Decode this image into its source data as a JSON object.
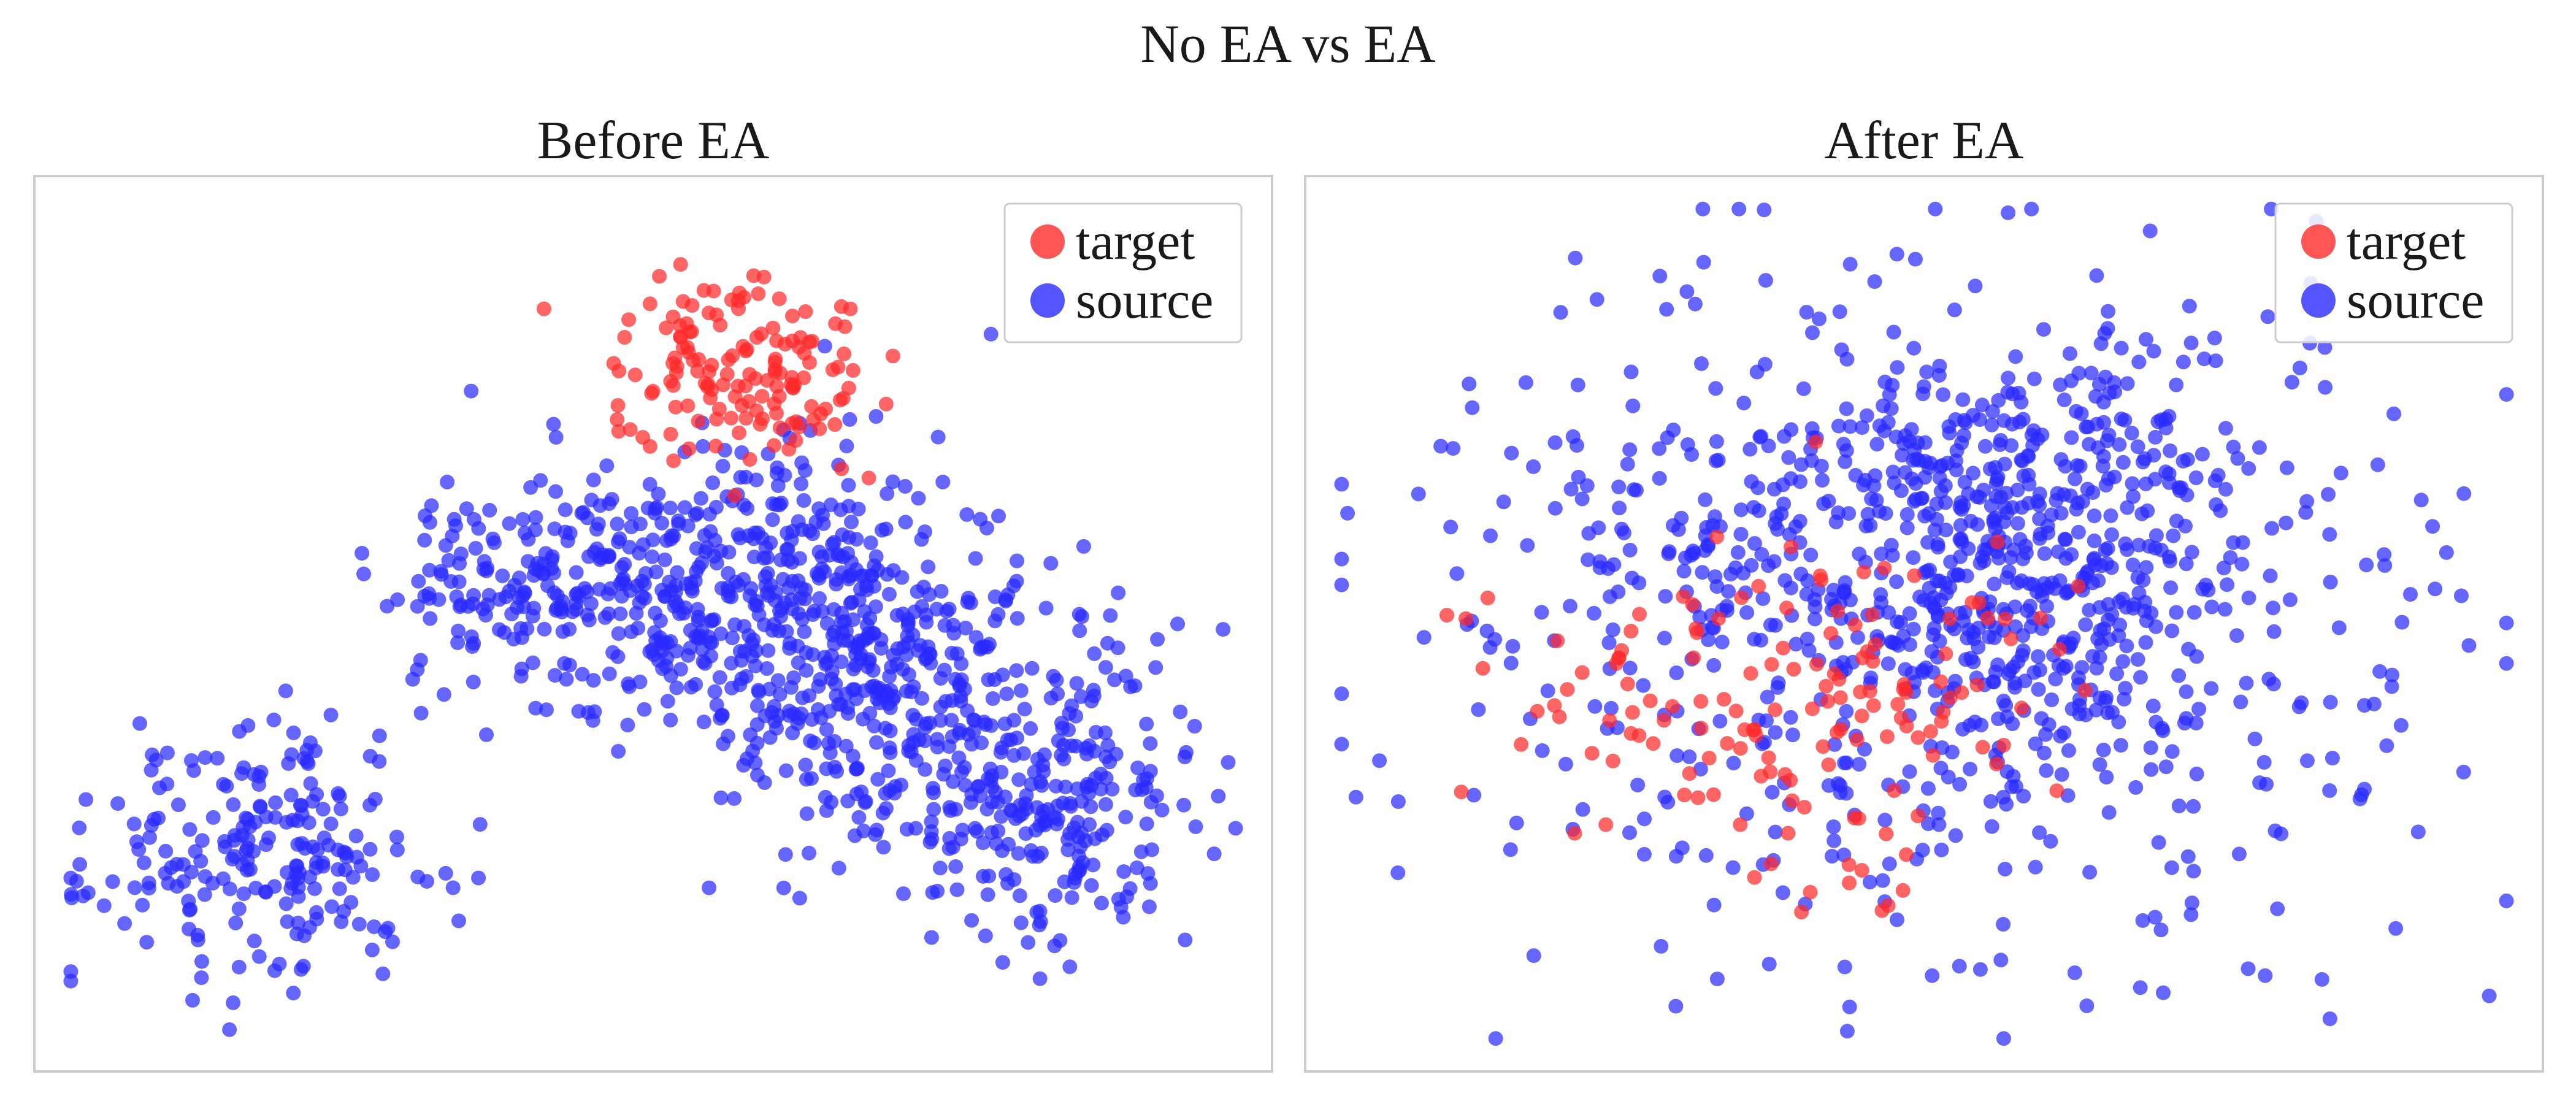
{
  "figure": {
    "title": "No EA vs EA"
  },
  "colors": {
    "target": "#ff2a2a",
    "source": "#2a2aff",
    "frame": "#cccccc",
    "legend_border": "#cccccc"
  },
  "chart_data": [
    {
      "type": "scatter",
      "title": "Before EA",
      "xlabel": "",
      "ylabel": "",
      "xlim": [
        0,
        100
      ],
      "ylim": [
        0,
        100
      ],
      "grid": false,
      "ticks": false,
      "legend": {
        "placement": "top-right",
        "entries": [
          "target",
          "source"
        ]
      },
      "series": [
        {
          "name": "target",
          "color": "#ff2a2a",
          "clusters": [
            {
              "cx": 58,
              "cy": 80,
              "sx": 5.5,
              "sy": 5.5,
              "n": 150
            }
          ]
        },
        {
          "name": "source",
          "color": "#2a2aff",
          "clusters": [
            {
              "cx": 16,
              "cy": 22,
              "sx": 7,
              "sy": 7,
              "n": 220
            },
            {
              "cx": 40,
              "cy": 55,
              "sx": 6.5,
              "sy": 6,
              "n": 190
            },
            {
              "cx": 60,
              "cy": 55,
              "sx": 8,
              "sy": 9,
              "n": 360
            },
            {
              "cx": 70,
              "cy": 40,
              "sx": 9,
              "sy": 9,
              "n": 320
            },
            {
              "cx": 85,
              "cy": 28,
              "sx": 6,
              "sy": 8,
              "n": 210
            }
          ]
        }
      ]
    },
    {
      "type": "scatter",
      "title": "After EA",
      "xlabel": "",
      "ylabel": "",
      "xlim": [
        0,
        100
      ],
      "ylim": [
        0,
        100
      ],
      "grid": false,
      "ticks": false,
      "legend": {
        "placement": "top-right",
        "entries": [
          "target",
          "source"
        ]
      },
      "series": [
        {
          "name": "target",
          "color": "#ff2a2a",
          "clusters": [
            {
              "cx": 38,
              "cy": 40,
              "sx": 11,
              "sy": 10,
              "n": 150
            }
          ]
        },
        {
          "name": "source",
          "color": "#2a2aff",
          "clusters": [
            {
              "cx": 52,
              "cy": 52,
              "sx": 20,
              "sy": 19,
              "n": 780
            },
            {
              "cx": 58,
              "cy": 62,
              "sx": 10,
              "sy": 10,
              "n": 300
            }
          ]
        }
      ]
    }
  ]
}
